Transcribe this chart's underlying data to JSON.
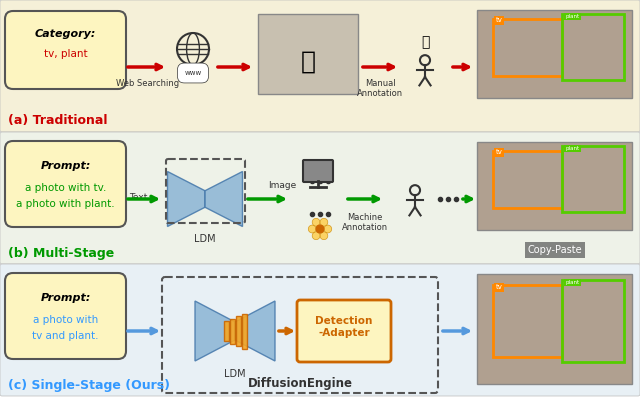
{
  "bg_colors": [
    "#f5f0d8",
    "#eef2e8",
    "#e8f0f5"
  ],
  "row_labels": [
    "(a) Traditional",
    "(b) Multi-Stage",
    "(c) Single-Stage (Ours)"
  ],
  "row_label_colors": [
    "#cc0000",
    "#009900",
    "#3399ff"
  ],
  "prompt_box_color": "#fdf5c0",
  "prompt_box_edge": "#555555",
  "arrow_colors_row0": "#cc0000",
  "arrow_colors_row1": "#009900",
  "arrow_colors_row2": "#5599dd",
  "ldm_color": "#8ab4d4",
  "adapter_color": "#f5a623",
  "adapter_bg": "#fdf5c0",
  "dashed_box_color": "#555555",
  "detection_adapter_color": "#cc6600",
  "category_italic": "Category:",
  "category_value": "tv, plant",
  "prompt_italic_1": "Prompt:",
  "prompt_value_1a": "a photo with tv.",
  "prompt_value_1b": "a photo with plant.",
  "prompt_value_2a": "a photo with",
  "prompt_value_2b": "tv and plant.",
  "web_search_label": "Web Searching",
  "manual_ann_label": "Manual\nAnnotation",
  "machine_ann_label": "Machine\nAnnotation",
  "ldm_label": "LDM",
  "diffusion_engine_label": "DiffusionEngine",
  "detection_adapter_label": "Detection\n-Adapter",
  "copy_paste_label": "Copy-Paste",
  "text_label": "Text",
  "image_label": "Image"
}
